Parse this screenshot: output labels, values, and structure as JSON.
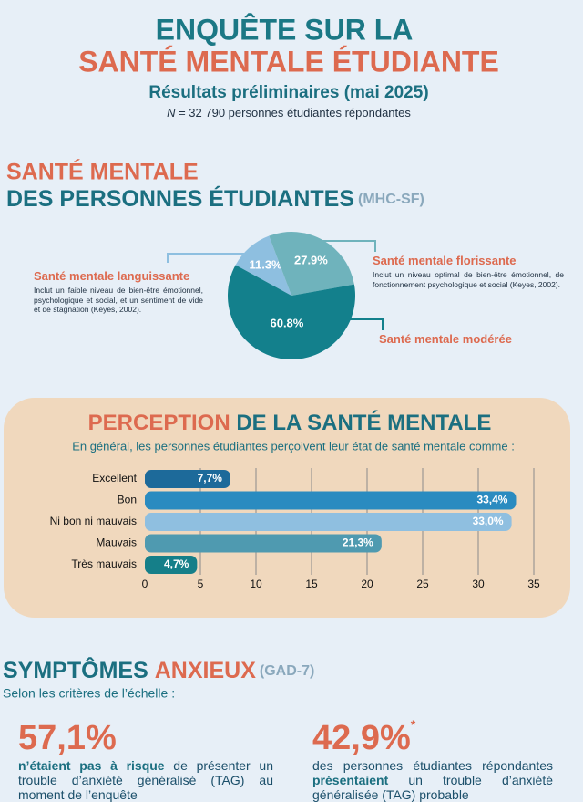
{
  "header": {
    "title_line1": "ENQUÊTE SUR LA",
    "title_line2": "SANTÉ MENTALE ÉTUDIANTE",
    "subtitle": "Résultats préliminaires (mai 2025)",
    "note_symbol": "N",
    "note": " = 32 790 personnes étudiantes répondantes"
  },
  "chart_data": [
    {
      "type": "pie",
      "title_line1": "SANTÉ MENTALE",
      "title_line2": "DES PERSONNES ÉTUDIANTES",
      "title_tag": "(MHC-SF)",
      "categories": [
        "Santé mentale languissante",
        "Santé mentale florissante",
        "Santé mentale modérée"
      ],
      "descriptions": [
        "Inclut un faible niveau de bien-être émotionnel, psychologique et social, et un sentiment de vide et de stagnation (Keyes, 2002).",
        "Inclut un niveau optimal de bien-être émotionnel, de fonctionnement psychologique et social (Keyes, 2002).",
        null
      ],
      "values": [
        11.3,
        27.9,
        60.8
      ],
      "value_labels": [
        "11.3%",
        "27.9%",
        "60.8%"
      ],
      "colors": [
        "#8ebfe0",
        "#6fb3bc",
        "#13808c"
      ]
    },
    {
      "type": "hbar",
      "title_part1": "PERCEPTION",
      "title_part2": " DE LA SANTÉ MENTALE",
      "subtitle": "En général, les personnes étudiantes perçoivent leur état de santé mentale comme :",
      "categories": [
        "Excellent",
        "Bon",
        "Ni bon ni mauvais",
        "Mauvais",
        "Très mauvais"
      ],
      "values": [
        7.7,
        33.4,
        33.0,
        21.3,
        4.7
      ],
      "value_labels": [
        "7,7%",
        "33,4%",
        "33,0%",
        "21,3%",
        "4,7%"
      ],
      "colors": [
        "#1d6a9a",
        "#2a8bc0",
        "#8fbfe0",
        "#4f9ab0",
        "#157f89"
      ],
      "xlim": [
        0,
        35
      ],
      "xticks": [
        0,
        5,
        10,
        15,
        20,
        25,
        30,
        35
      ],
      "grid": true
    }
  ],
  "anxiety": {
    "title_part1": "SYMPTÔMES",
    "title_part2": "ANXIEUX",
    "title_tag": "(GAD-7)",
    "subtitle": "Selon les critères de l’échelle :",
    "stat1": {
      "value": "57,1%",
      "text_bold": "n’étaient pas à risque",
      "text": " de présenter un trouble d’anxiété généralisé (TAG) au moment de l’enquête"
    },
    "stat2": {
      "value": "42,9%",
      "mark": "*",
      "text_before": "des personnes étudiantes répondantes ",
      "text_bold": "présentaient",
      "text": " un trouble d’anxiété généralisée (TAG) probable"
    }
  }
}
